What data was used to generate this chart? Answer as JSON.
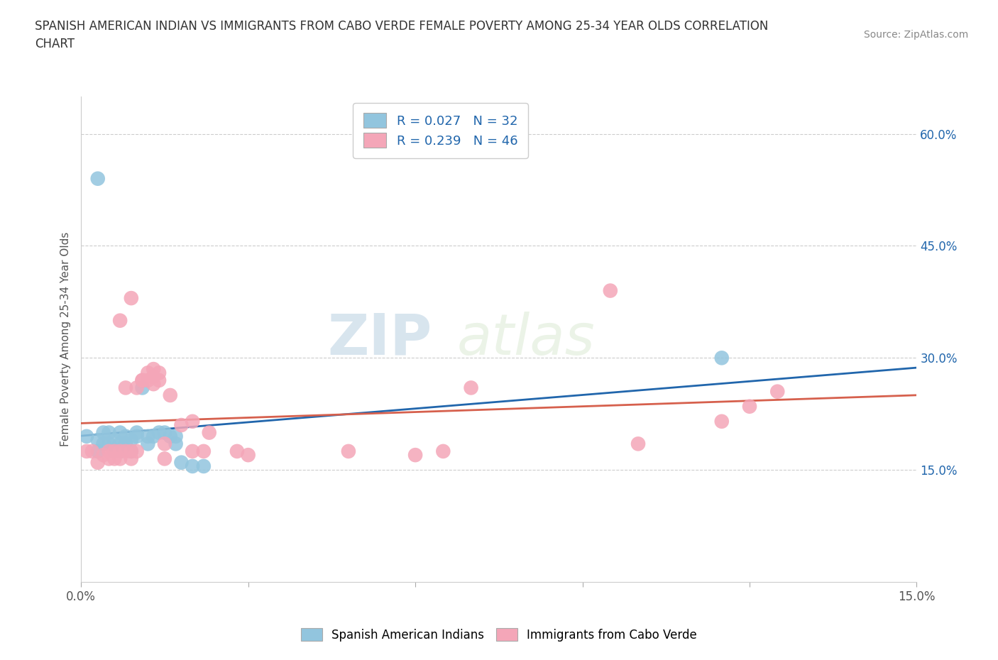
{
  "title": "SPANISH AMERICAN INDIAN VS IMMIGRANTS FROM CABO VERDE FEMALE POVERTY AMONG 25-34 YEAR OLDS CORRELATION\nCHART",
  "source": "Source: ZipAtlas.com",
  "ylabel": "Female Poverty Among 25-34 Year Olds",
  "xlim": [
    0.0,
    0.15
  ],
  "ylim": [
    0.0,
    0.65
  ],
  "ytick_positions": [
    0.15,
    0.3,
    0.45,
    0.6
  ],
  "ytick_labels": [
    "15.0%",
    "30.0%",
    "45.0%",
    "60.0%"
  ],
  "color_blue": "#92c5de",
  "color_pink": "#f4a6b8",
  "line_color_blue": "#2166ac",
  "line_color_pink": "#d6604d",
  "R1": 0.027,
  "N1": 32,
  "R2": 0.239,
  "N2": 46,
  "legend_label1": "Spanish American Indians",
  "legend_label2": "Immigrants from Cabo Verde",
  "watermark_zip": "ZIP",
  "watermark_atlas": "atlas",
  "blue_x": [
    0.001,
    0.003,
    0.003,
    0.004,
    0.004,
    0.005,
    0.005,
    0.006,
    0.006,
    0.007,
    0.007,
    0.007,
    0.008,
    0.008,
    0.009,
    0.009,
    0.01,
    0.01,
    0.011,
    0.012,
    0.012,
    0.013,
    0.014,
    0.015,
    0.016,
    0.017,
    0.017,
    0.018,
    0.02,
    0.022,
    0.115,
    0.003
  ],
  "blue_y": [
    0.195,
    0.175,
    0.19,
    0.185,
    0.2,
    0.185,
    0.2,
    0.175,
    0.19,
    0.175,
    0.185,
    0.2,
    0.185,
    0.195,
    0.175,
    0.19,
    0.2,
    0.195,
    0.26,
    0.185,
    0.195,
    0.195,
    0.2,
    0.2,
    0.195,
    0.195,
    0.185,
    0.16,
    0.155,
    0.155,
    0.3,
    0.54
  ],
  "pink_x": [
    0.001,
    0.002,
    0.003,
    0.004,
    0.005,
    0.005,
    0.006,
    0.006,
    0.007,
    0.007,
    0.007,
    0.008,
    0.008,
    0.009,
    0.009,
    0.009,
    0.01,
    0.01,
    0.011,
    0.011,
    0.012,
    0.012,
    0.013,
    0.013,
    0.013,
    0.014,
    0.014,
    0.015,
    0.015,
    0.016,
    0.018,
    0.02,
    0.02,
    0.022,
    0.023,
    0.028,
    0.03,
    0.048,
    0.06,
    0.065,
    0.07,
    0.095,
    0.1,
    0.115,
    0.12,
    0.125
  ],
  "pink_y": [
    0.175,
    0.175,
    0.16,
    0.17,
    0.175,
    0.165,
    0.175,
    0.165,
    0.175,
    0.165,
    0.35,
    0.175,
    0.26,
    0.165,
    0.175,
    0.38,
    0.175,
    0.26,
    0.27,
    0.27,
    0.27,
    0.28,
    0.265,
    0.275,
    0.285,
    0.27,
    0.28,
    0.165,
    0.185,
    0.25,
    0.21,
    0.215,
    0.175,
    0.175,
    0.2,
    0.175,
    0.17,
    0.175,
    0.17,
    0.175,
    0.26,
    0.39,
    0.185,
    0.215,
    0.235,
    0.255
  ],
  "background_color": "#ffffff",
  "grid_color": "#cccccc",
  "title_color": "#333333",
  "source_color": "#888888"
}
